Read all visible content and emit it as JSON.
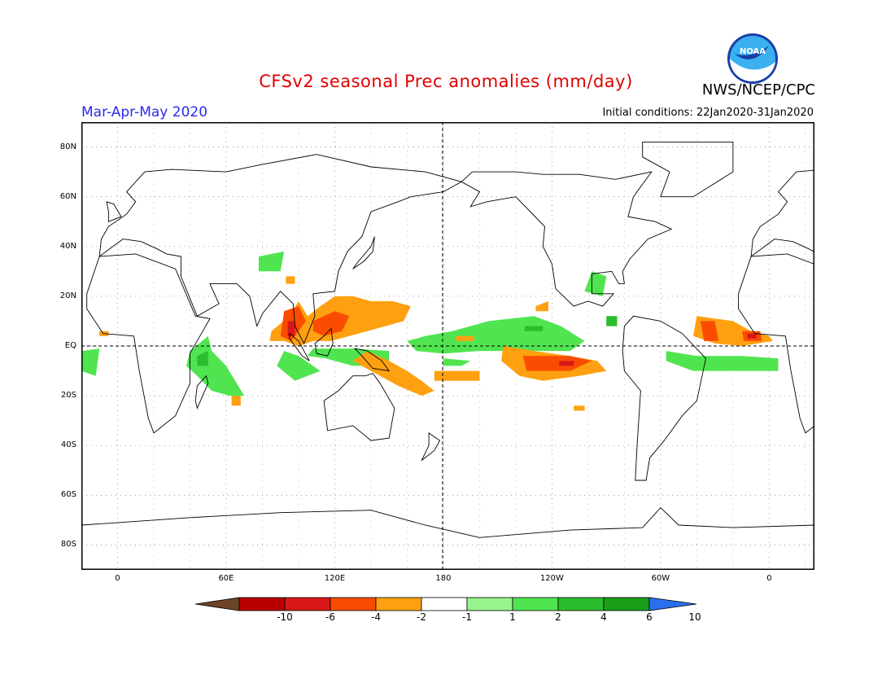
{
  "title": "CFSv2 seasonal Prec anomalies (mm/day)",
  "season": "Mar-Apr-May 2020",
  "initial_conditions": "Initial conditions: 22Jan2020-31Jan2020",
  "agency": "NWS/NCEP/CPC",
  "logo": {
    "icon": "noaa-logo-icon",
    "text": "NOAA"
  },
  "map": {
    "lat_labels": [
      "80N",
      "60N",
      "40N",
      "20N",
      "EQ",
      "20S",
      "40S",
      "60S",
      "80S"
    ],
    "lon_labels": [
      "0",
      "60E",
      "120E",
      "180",
      "120W",
      "60W",
      "0"
    ],
    "lat_range": [
      -90,
      90
    ],
    "lon_range": [
      -20,
      385
    ],
    "grid": "dotted",
    "reference_lines": [
      "equator",
      "dateline"
    ]
  },
  "legend": {
    "labels": [
      "-10",
      "-6",
      "-4",
      "-2",
      "-1",
      "1",
      "2",
      "4",
      "6",
      "10"
    ],
    "colors": [
      "#6e4426",
      "#b80000",
      "#d81818",
      "#fa4c00",
      "#ffa010",
      "#ffffff",
      "#96f48c",
      "#50e450",
      "#2cbd2c",
      "#1a9e1a",
      "#2a70ee"
    ]
  },
  "colors": {
    "title": "#e00000",
    "season": "#2a2aee"
  }
}
